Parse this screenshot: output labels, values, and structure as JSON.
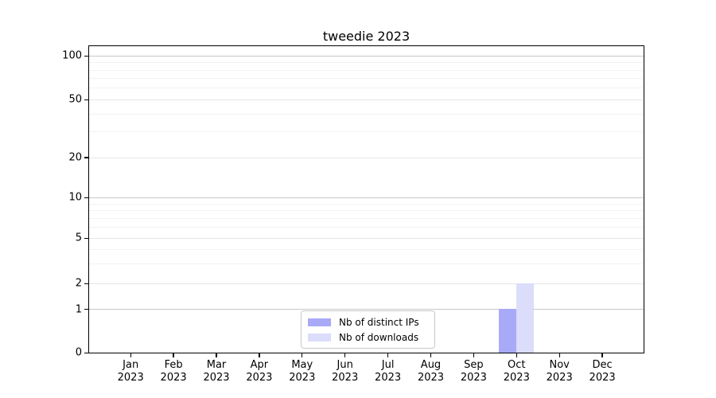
{
  "chart_data": {
    "type": "bar",
    "title": "tweedie 2023",
    "categories": [
      "Jan 2023",
      "Feb 2023",
      "Mar 2023",
      "Apr 2023",
      "May 2023",
      "Jun 2023",
      "Jul 2023",
      "Aug 2023",
      "Sep 2023",
      "Oct 2023",
      "Nov 2023",
      "Dec 2023"
    ],
    "series": [
      {
        "name": "Nb of distinct IPs",
        "color": "#a8aaf7",
        "values": [
          0,
          0,
          0,
          0,
          0,
          0,
          0,
          0,
          0,
          1,
          0,
          0
        ]
      },
      {
        "name": "Nb of downloads",
        "color": "#dbddfa",
        "values": [
          0,
          0,
          0,
          0,
          0,
          0,
          0,
          0,
          0,
          2,
          0,
          0
        ]
      }
    ],
    "yscale": "log-like (0,1,2,5,10,20,50,100)",
    "yticks": [
      0,
      1,
      2,
      5,
      10,
      20,
      50,
      100
    ],
    "minor_yticks": [
      3,
      4,
      6,
      7,
      8,
      9,
      30,
      40,
      60,
      70,
      80,
      90
    ],
    "ylim": [
      0,
      110
    ],
    "xlabel": "",
    "ylabel": "",
    "grid": "horizontal",
    "legend_position": "lower-center-inside"
  },
  "colors": {
    "background": "#ffffff",
    "axis": "#000000",
    "grid_major": "#c8c8c8",
    "grid_minor": "#f2f2f2",
    "legend_border": "#c8c8c8",
    "bar_distinct_ips": "#a8aaf7",
    "bar_downloads": "#dbddfa"
  }
}
